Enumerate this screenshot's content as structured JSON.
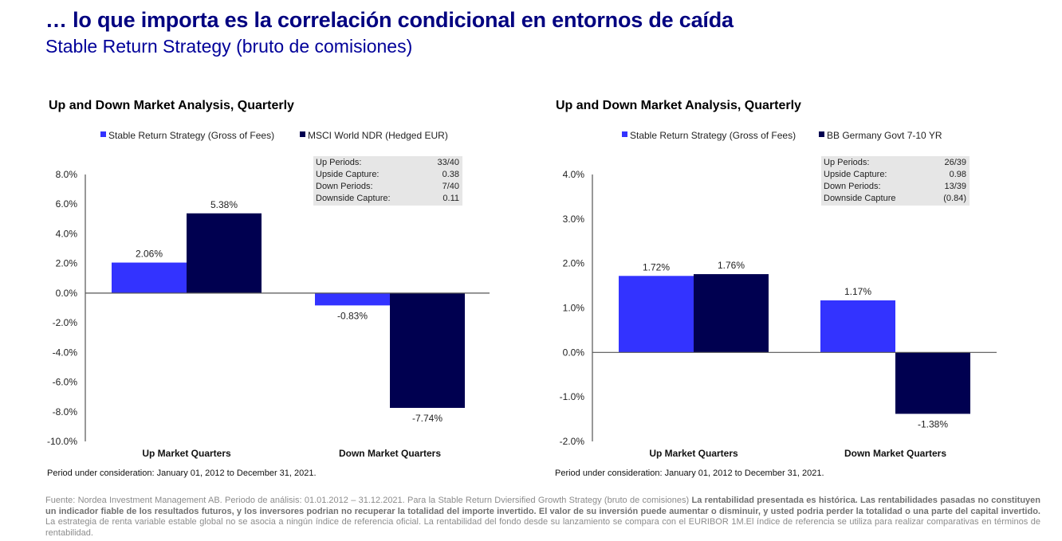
{
  "header": {
    "title": "… lo que importa es la correlación condicional en entornos de caída",
    "subtitle": "Stable Return Strategy (bruto de comisiones)"
  },
  "colors": {
    "strategy": "#3333ff",
    "benchmark": "#000050",
    "stats_box": "#e6e6e6",
    "title": "#000080"
  },
  "chart_data": [
    {
      "type": "bar",
      "title": "Up and Down Market Analysis,  Quarterly",
      "categories": [
        "Up Market  Quarters",
        "Down Market Quarters"
      ],
      "series": [
        {
          "name": "Stable Return Strategy (Gross of Fees)",
          "values": [
            2.06,
            -0.83
          ],
          "labels": [
            "2.06%",
            "-0.83%"
          ]
        },
        {
          "name": "MSCI World NDR (Hedged EUR)",
          "values": [
            5.38,
            -7.74
          ],
          "labels": [
            "5.38%",
            "-7.74%"
          ]
        }
      ],
      "ylim": [
        -10,
        8
      ],
      "yticks": [
        8,
        6,
        4,
        2,
        0,
        -2,
        -4,
        -6,
        -8,
        -10
      ],
      "ytick_labels": [
        "8.0%",
        "6.0%",
        "4.0%",
        "2.0%",
        "0.0%",
        "-2.0%",
        "-4.0%",
        "-6.0%",
        "-8.0%",
        "-10.0%"
      ],
      "legend_position": "top-center",
      "grid": false,
      "stats": [
        {
          "label": "Up Periods:",
          "value": "33/40"
        },
        {
          "label": "Upside Capture:",
          "value": "0.38"
        },
        {
          "label": "Down Periods:",
          "value": "7/40"
        },
        {
          "label": "Downside Capture:",
          "value": "0.11"
        }
      ],
      "period_note": "Period under consideration: January 01, 2012 to December 31, 2021."
    },
    {
      "type": "bar",
      "title": "Up and Down Market Analysis,  Quarterly",
      "categories": [
        "Up Market Quarters",
        "Down Market Quarters"
      ],
      "series": [
        {
          "name": "Stable Return Strategy (Gross of Fees)",
          "values": [
            1.72,
            1.17
          ],
          "labels": [
            "1.72%",
            "1.17%"
          ]
        },
        {
          "name": "BB Germany Govt 7-10 YR",
          "values": [
            1.76,
            -1.38
          ],
          "labels": [
            "1.76%",
            "-1.38%"
          ]
        }
      ],
      "ylim": [
        -2,
        4
      ],
      "yticks": [
        4,
        3,
        2,
        1,
        0,
        -1,
        -2
      ],
      "ytick_labels": [
        "4.0%",
        "3.0%",
        "2.0%",
        "1.0%",
        "0.0%",
        "-1.0%",
        "-2.0%"
      ],
      "legend_position": "top-center",
      "grid": false,
      "stats": [
        {
          "label": "Up Periods:",
          "value": "26/39"
        },
        {
          "label": "Upside Capture:",
          "value": "0.98"
        },
        {
          "label": "Down Periods:",
          "value": "13/39"
        },
        {
          "label": "Downside Capture",
          "value": "(0.84)"
        }
      ],
      "period_note": "Period under consideration: January 01, 2012 to December 31, 2021."
    }
  ],
  "footer": {
    "part1": "Fuente: Nordea Investment Management AB. Periodo de análisis: 01.01.2012 – 31.12.2021. Para la Stable Return Dviersified Growth Strategy (bruto de comisiones) ",
    "part2_bold": "La rentabilidad presentada es histórica. Las rentabilidades pasadas no constituyen un indicador fiable de los resultados futuros, y los inversores podrian no recuperar la totalidad del importe invertido. El valor de su inversión puede aumentar o disminuir, y usted podria perder la totalidad o una parte del capital invertido.",
    "part3": " La estrategia de renta variable estable global no se asocia a ningún índice de referencia oficial. La rentabilidad del fondo desde su lanzamiento se compara con el EURIBOR 1M.El índice de referencia se utiliza para realizar comparativas en términos de rentabilidad."
  }
}
